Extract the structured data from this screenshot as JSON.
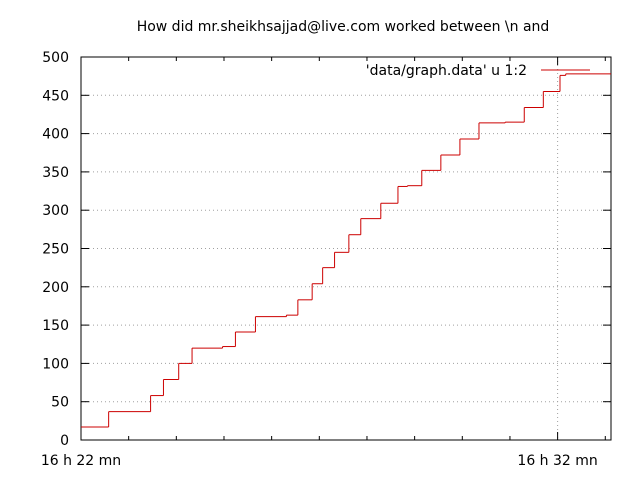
{
  "chart_data": {
    "type": "line",
    "title": "How did mr.sheikhsajjad@live.com worked between \\n  and",
    "xlabel": "",
    "ylabel": "",
    "ylim": [
      0,
      500
    ],
    "yticks": [
      "0",
      "50",
      "100",
      "150",
      "200",
      "250",
      "300",
      "350",
      "400",
      "450",
      "500"
    ],
    "xtick_labels": [
      "16 h 22 mn",
      "16 h 32 mn"
    ],
    "grid": true,
    "legend_position": "top-right",
    "line_style": "steps",
    "color": "#cc0000",
    "series": [
      {
        "name": "'data/graph.data' u 1:2",
        "x_unit": "minutes after 16 h 22 mn",
        "x": [
          0,
          0.58,
          0.58,
          1.46,
          1.46,
          1.73,
          1.73,
          2.05,
          2.05,
          2.33,
          2.33,
          2.97,
          2.97,
          3.24,
          3.24,
          3.66,
          3.66,
          4.31,
          4.31,
          4.55,
          4.55,
          4.85,
          4.85,
          5.07,
          5.07,
          5.32,
          5.32,
          5.62,
          5.62,
          5.87,
          5.87,
          6.29,
          6.29,
          6.65,
          6.65,
          6.85,
          6.85,
          7.15,
          7.15,
          7.55,
          7.55,
          7.95,
          7.95,
          8.35,
          8.35,
          8.9,
          8.9,
          9.3,
          9.3,
          9.7,
          9.7,
          10.05,
          10.05,
          10.17,
          10.17,
          11.12
        ],
        "y": [
          17,
          17,
          37,
          37,
          58,
          58,
          79,
          79,
          100,
          100,
          120,
          120,
          122,
          122,
          141,
          141,
          161,
          161,
          163,
          163,
          183,
          183,
          204,
          204,
          225,
          225,
          245,
          245,
          268,
          268,
          289,
          289,
          309,
          309,
          331,
          331,
          332,
          332,
          352,
          352,
          372,
          372,
          393,
          393,
          414,
          414,
          415,
          415,
          434,
          434,
          455,
          455,
          476,
          476,
          478,
          478
        ]
      }
    ]
  }
}
